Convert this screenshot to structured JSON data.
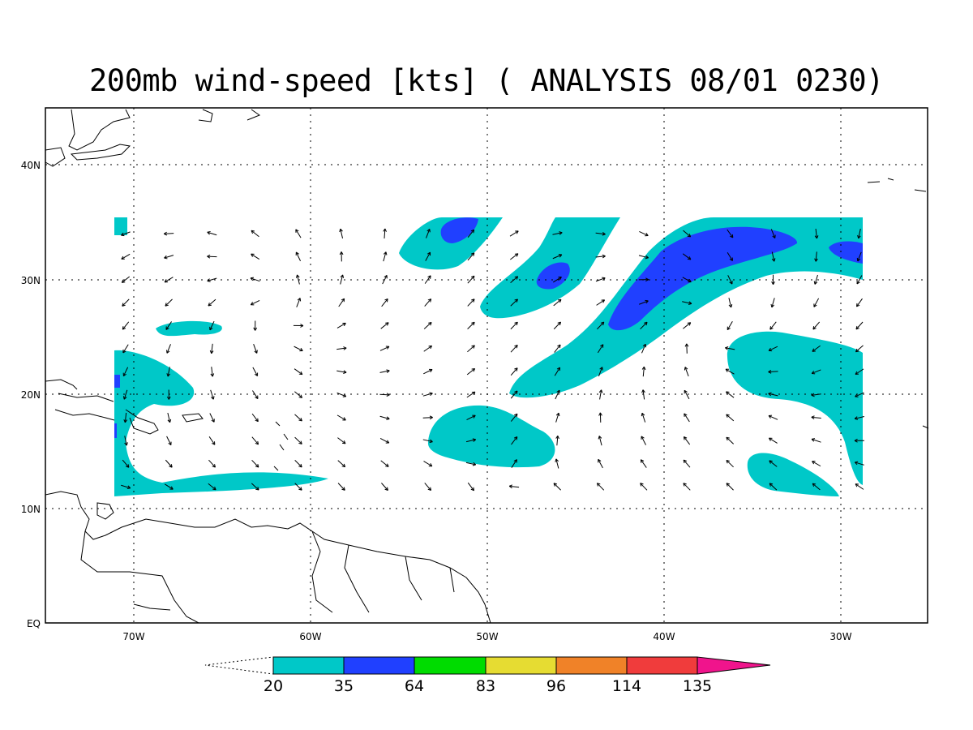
{
  "title": "200mb wind-speed [kts] ( ANALYSIS 08/01 0230)",
  "map": {
    "lat_labels": [
      "40N",
      "30N",
      "20N",
      "10N",
      "EQ"
    ],
    "lon_labels": [
      "70W",
      "60W",
      "50W",
      "40W",
      "30W"
    ],
    "grid": "dotted"
  },
  "colorbar": {
    "thresholds": [
      "20",
      "35",
      "64",
      "83",
      "96",
      "114",
      "135"
    ],
    "colors": [
      "#00c8c8",
      "#2040ff",
      "#00dc00",
      "#e6dc32",
      "#f08228",
      "#f03c3c",
      "#f0148c"
    ]
  }
}
